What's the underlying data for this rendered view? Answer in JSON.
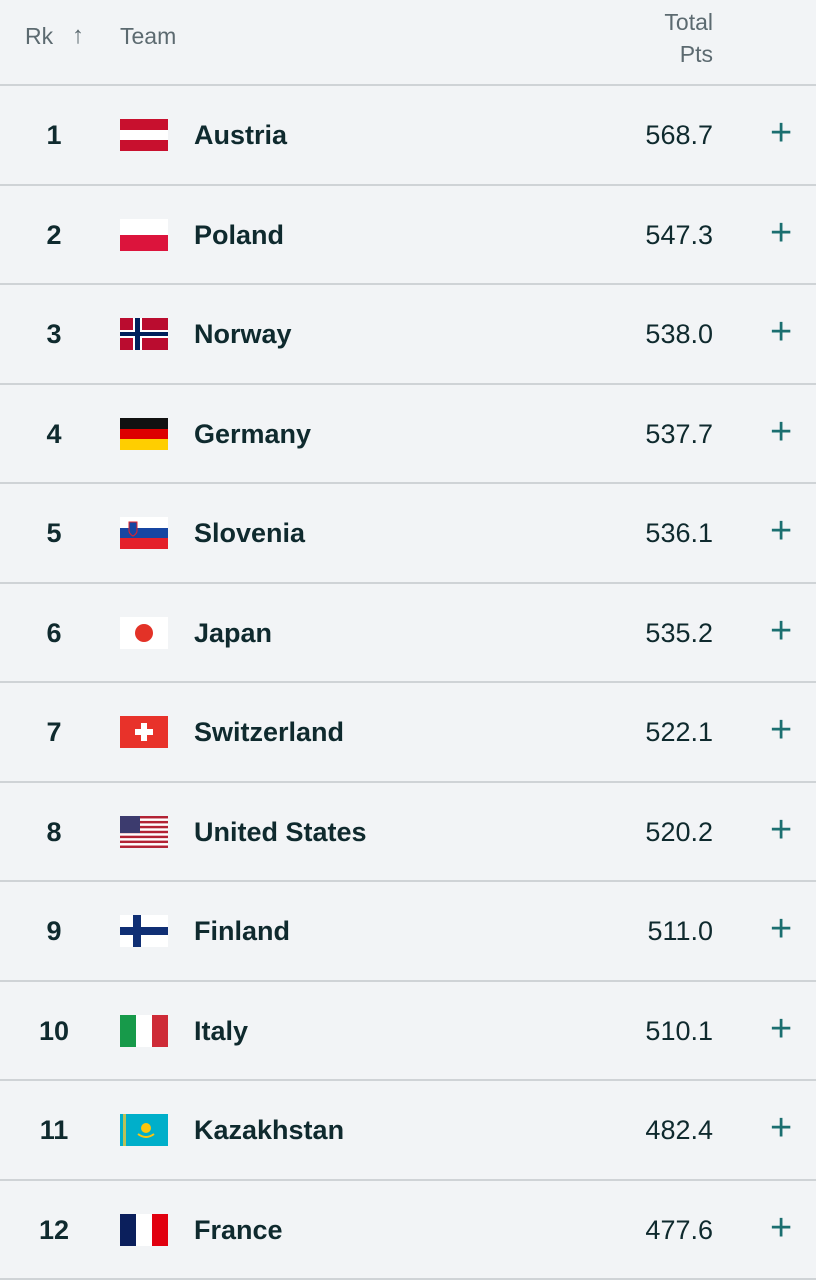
{
  "header": {
    "rank": "Rk",
    "sort_icon": "arrow-up-icon",
    "team": "Team",
    "pts_line1": "Total",
    "pts_line2": "Pts"
  },
  "rows": [
    {
      "rank": "1",
      "team": "Austria",
      "pts": "568.7",
      "flag": "austria"
    },
    {
      "rank": "2",
      "team": "Poland",
      "pts": "547.3",
      "flag": "poland"
    },
    {
      "rank": "3",
      "team": "Norway",
      "pts": "538.0",
      "flag": "norway"
    },
    {
      "rank": "4",
      "team": "Germany",
      "pts": "537.7",
      "flag": "germany"
    },
    {
      "rank": "5",
      "team": "Slovenia",
      "pts": "536.1",
      "flag": "slovenia"
    },
    {
      "rank": "6",
      "team": "Japan",
      "pts": "535.2",
      "flag": "japan"
    },
    {
      "rank": "7",
      "team": "Switzerland",
      "pts": "522.1",
      "flag": "switzerland"
    },
    {
      "rank": "8",
      "team": "United States",
      "pts": "520.2",
      "flag": "usa"
    },
    {
      "rank": "9",
      "team": "Finland",
      "pts": "511.0",
      "flag": "finland"
    },
    {
      "rank": "10",
      "team": "Italy",
      "pts": "510.1",
      "flag": "italy"
    },
    {
      "rank": "11",
      "team": "Kazakhstan",
      "pts": "482.4",
      "flag": "kazakhstan"
    },
    {
      "rank": "12",
      "team": "France",
      "pts": "477.6",
      "flag": "france"
    }
  ],
  "expand_icon": "plus-icon",
  "accent_color": "#1b6f70"
}
